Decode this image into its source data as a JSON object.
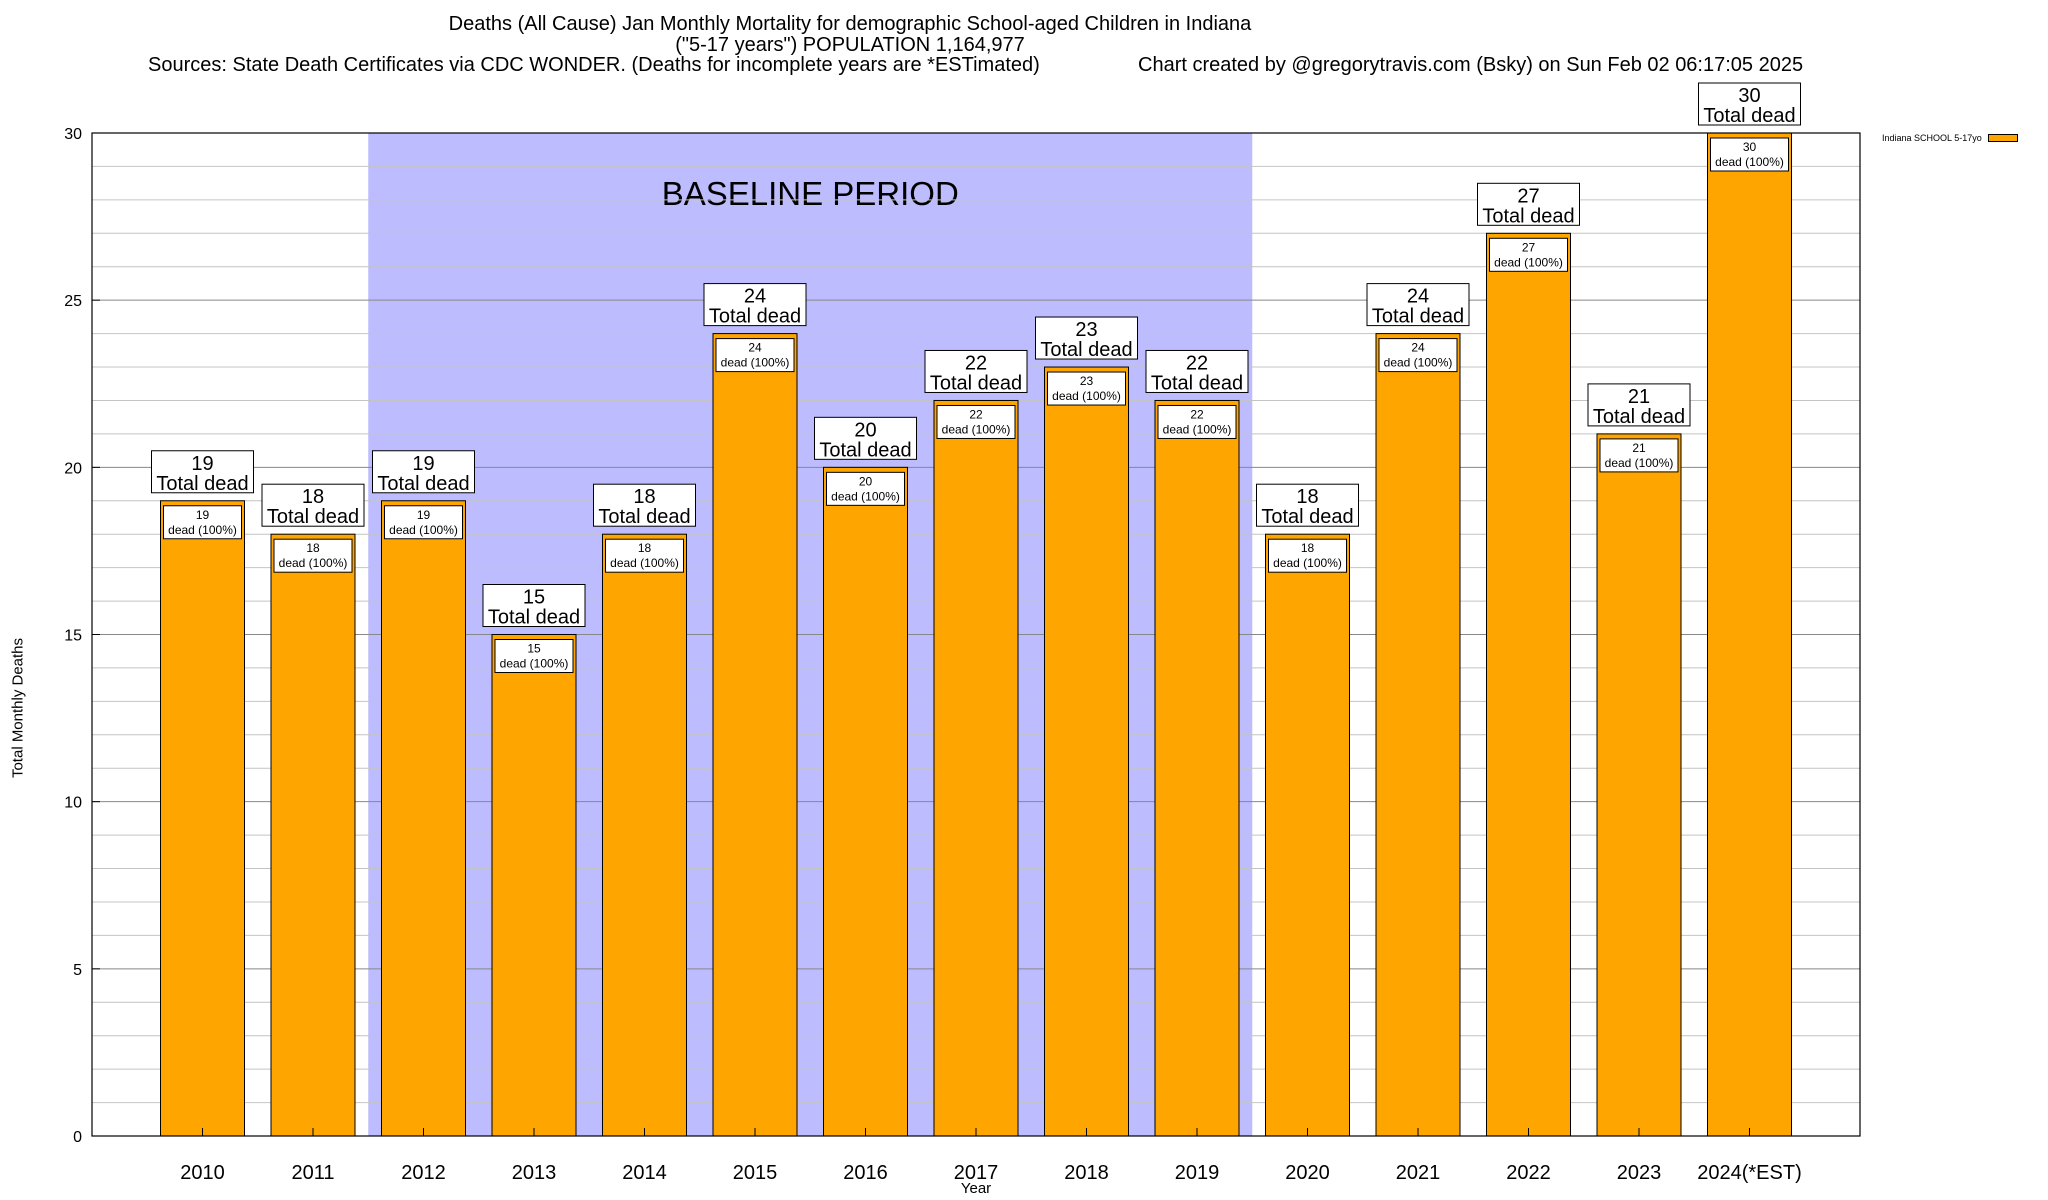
{
  "header": {
    "title_line1": "Deaths (All Cause) Jan Monthly Mortality for demographic School-aged Children in Indiana",
    "title_line2": "(\"5-17 years\") POPULATION 1,164,977",
    "sources": "Sources: State Death Certificates via CDC WONDER. (Deaths for incomplete years are *ESTimated)",
    "credit": "Chart created by @gregorytravis.com (Bsky) on Sun Feb 02 06:17:05 2025"
  },
  "chart_data": {
    "type": "bar",
    "title": "Deaths (All Cause) Jan Monthly Mortality for demographic School-aged Children in Indiana",
    "xlabel": "Year",
    "ylabel": "Total Monthly Deaths",
    "ylim": [
      0,
      30
    ],
    "yticks": [
      0,
      5,
      10,
      15,
      20,
      25,
      30
    ],
    "grid": true,
    "legend_position": "top-right, outside plot",
    "categories": [
      "2010",
      "2011",
      "2012",
      "2013",
      "2014",
      "2015",
      "2016",
      "2017",
      "2018",
      "2019",
      "2020",
      "2021",
      "2022",
      "2023",
      "2024(*EST)"
    ],
    "series": [
      {
        "name": "Indiana SCHOOL 5-17yo",
        "color": "#FFA500",
        "values": [
          19,
          18,
          19,
          15,
          18,
          24,
          20,
          22,
          23,
          22,
          18,
          24,
          27,
          21,
          30
        ]
      }
    ],
    "total_label": "Total dead",
    "segment_label_suffix": "dead (100%)",
    "baseline": {
      "label": "BASELINE PERIOD",
      "from": "2012",
      "to": "2019",
      "color": "#BCBCFF"
    }
  }
}
